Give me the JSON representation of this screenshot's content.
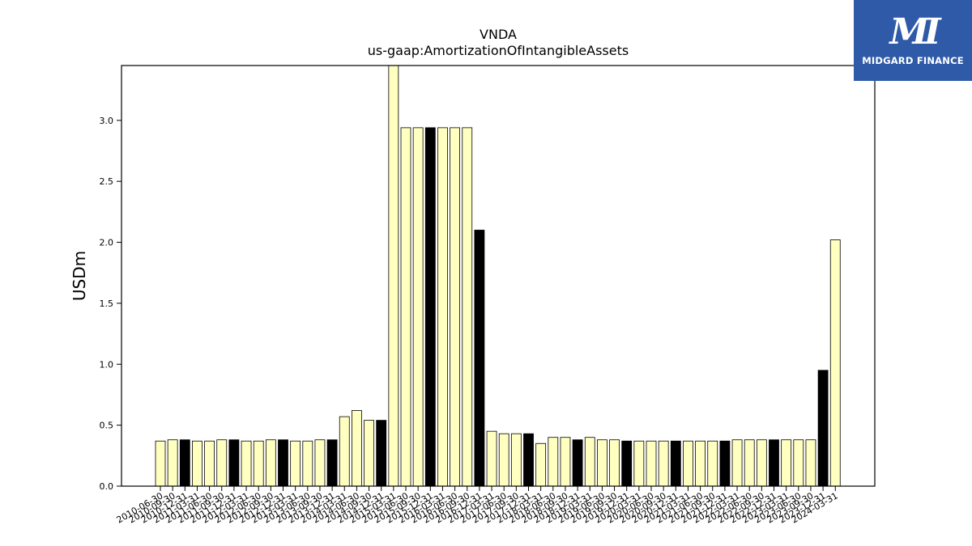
{
  "chart_data": {
    "type": "bar",
    "title": "VNDA",
    "subtitle": "us-gaap:AmortizationOfIntangibleAssets",
    "xlabel": "",
    "ylabel": "USDm",
    "ylim": [
      0,
      3.45
    ],
    "yticks": [
      "0.0",
      "0.5",
      "1.0",
      "1.5",
      "2.0",
      "2.5",
      "3.0"
    ],
    "grid": false,
    "colors": {
      "quarter": "#ffffc0",
      "annual": "#000000",
      "edge": "#000000"
    },
    "categories": [
      "2010-06-30",
      "2010-09-30",
      "2010-12-31",
      "2011-03-31",
      "2011-06-30",
      "2011-09-30",
      "2011-12-31",
      "2012-03-31",
      "2012-06-30",
      "2012-09-30",
      "2012-12-31",
      "2013-03-31",
      "2013-06-30",
      "2013-09-30",
      "2013-12-31",
      "2014-03-31",
      "2014-06-30",
      "2014-09-30",
      "2014-12-31",
      "2015-03-31",
      "2015-06-30",
      "2015-09-30",
      "2015-12-31",
      "2016-03-31",
      "2016-06-30",
      "2016-09-30",
      "2016-12-31",
      "2017-03-31",
      "2017-06-30",
      "2017-09-30",
      "2017-12-31",
      "2018-03-31",
      "2018-06-30",
      "2018-09-30",
      "2018-12-31",
      "2019-03-31",
      "2019-06-30",
      "2019-09-30",
      "2019-12-31",
      "2020-03-31",
      "2020-06-30",
      "2020-09-30",
      "2020-12-31",
      "2021-03-31",
      "2021-06-30",
      "2021-09-30",
      "2021-12-31",
      "2022-03-31",
      "2022-06-30",
      "2022-09-30",
      "2022-12-31",
      "2023-03-31",
      "2023-06-30",
      "2023-09-30",
      "2023-12-31",
      "2024-03-31"
    ],
    "values": [
      0.37,
      0.38,
      0.38,
      0.37,
      0.37,
      0.38,
      0.38,
      0.37,
      0.37,
      0.38,
      0.38,
      0.37,
      0.37,
      0.38,
      0.38,
      0.57,
      0.62,
      0.54,
      0.54,
      3.46,
      2.94,
      2.94,
      2.94,
      2.94,
      2.94,
      2.94,
      2.1,
      0.45,
      0.43,
      0.43,
      0.43,
      0.35,
      0.4,
      0.4,
      0.38,
      0.4,
      0.38,
      0.38,
      0.37,
      0.37,
      0.37,
      0.37,
      0.37,
      0.37,
      0.37,
      0.37,
      0.37,
      0.38,
      0.38,
      0.38,
      0.38,
      0.38,
      0.38,
      0.38,
      0.95,
      2.02
    ],
    "annual": [
      false,
      false,
      true,
      false,
      false,
      false,
      true,
      false,
      false,
      false,
      true,
      false,
      false,
      false,
      true,
      false,
      false,
      false,
      true,
      false,
      false,
      false,
      true,
      false,
      false,
      false,
      true,
      false,
      false,
      false,
      true,
      false,
      false,
      false,
      true,
      false,
      false,
      false,
      true,
      false,
      false,
      false,
      true,
      false,
      false,
      false,
      true,
      false,
      false,
      false,
      true,
      false,
      false,
      false,
      true,
      false
    ]
  },
  "logo": {
    "mark": "MI",
    "text": "MIDGARD FINANCE"
  }
}
